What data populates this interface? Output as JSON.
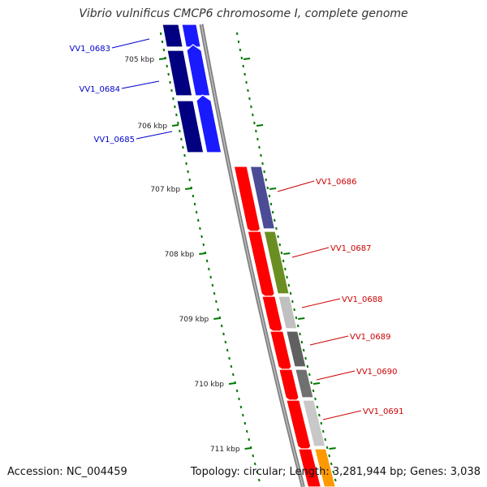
{
  "title": "Vibrio vulnificus CMCP6 chromosome I, complete genome",
  "accession": "Accession: NC_004459",
  "summary": "Topology: circular; Length: 3,281,944 bp; Genes: 3,038",
  "colors": {
    "forward_gene": "#1a1aff",
    "forward_gene_outer": "#000080",
    "reverse_cds": "#ff0000",
    "backbone": "#808080",
    "ticks": "#007700",
    "forward_label": "#0000cc",
    "reverse_label": "#cc0000"
  },
  "kbp_labels": [
    {
      "text": "705 kbp"
    },
    {
      "text": "706 kbp"
    },
    {
      "text": "707 kbp"
    },
    {
      "text": "708 kbp"
    },
    {
      "text": "709 kbp"
    },
    {
      "text": "710 kbp"
    },
    {
      "text": "711 kbp"
    }
  ],
  "forward_genes": [
    {
      "label": "VV1_0683"
    },
    {
      "label": "VV1_0684"
    },
    {
      "label": "VV1_0685"
    }
  ],
  "reverse_genes": [
    {
      "label": "VV1_0686",
      "category_color": "#4b4b96"
    },
    {
      "label": "VV1_0687",
      "category_color": "#6b8e23"
    },
    {
      "label": "VV1_0688",
      "category_color": "#c0c0c0"
    },
    {
      "label": "VV1_0689",
      "category_color": "#606060"
    },
    {
      "label": "VV1_0690",
      "category_color": "#707070"
    },
    {
      "label": "VV1_0691",
      "category_color": "#c8c8c8"
    }
  ]
}
